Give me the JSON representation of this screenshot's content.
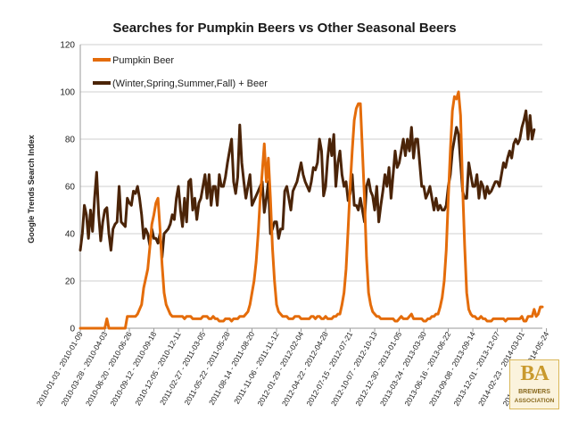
{
  "chart_data": {
    "type": "line",
    "title": "Searches for Pumpkin Beers vs Other Seasonal Beers",
    "ylabel": "Google Trends Search Index",
    "xlabel": "",
    "ylim": [
      0,
      120
    ],
    "yticks": [
      0,
      20,
      40,
      60,
      80,
      100,
      120
    ],
    "grid": "horizontal",
    "legend_position": "top-left",
    "x_tick_labels": [
      "2010-01-03 - 2010-01-09",
      "2010-03-28 - 2010-04-03",
      "2010-06-20 - 2010-06-26",
      "2010-09-12 - 2010-09-18",
      "2010-12-05 - 2010-12-11",
      "2011-02-27 - 2011-03-05",
      "2011-05-22 - 2011-05-28",
      "2011-08-14 - 2011-08-20",
      "2011-11-06 - 2011-11-12",
      "2012-01-29 - 2012-02-04",
      "2012-04-22 - 2012-04-28",
      "2012-07-15 - 2012-07-21",
      "2012-10-07 - 2012-10-13",
      "2012-12-30 - 2013-01-05",
      "2013-03-24 - 2013-03-30",
      "2013-06-16 - 2013-06-22",
      "2013-09-08 - 2013-09-14",
      "2013-12-01 - 2013-12-07",
      "2014-02-23 - 2014-03-01",
      "2014-05-18 - 2014-05-24"
    ],
    "series": [
      {
        "name": "Pumpkin Beer",
        "color": "#e46c0a",
        "values": [
          0,
          0,
          0,
          0,
          0,
          0,
          0,
          0,
          0,
          0,
          0,
          0,
          0,
          4,
          0,
          0,
          0,
          0,
          0,
          0,
          0,
          0,
          0,
          5,
          5,
          5,
          5,
          5,
          6,
          8,
          10,
          17,
          21,
          25,
          34,
          44,
          48,
          53,
          55,
          42,
          27,
          15,
          10,
          8,
          6,
          5,
          5,
          5,
          5,
          5,
          5,
          4,
          5,
          5,
          5,
          4,
          4,
          4,
          4,
          4,
          5,
          5,
          5,
          4,
          4,
          5,
          4,
          4,
          3,
          3,
          3,
          4,
          4,
          4,
          3,
          4,
          4,
          4,
          5,
          5,
          5,
          6,
          7,
          10,
          15,
          20,
          28,
          40,
          55,
          66,
          78,
          62,
          72,
          55,
          34,
          20,
          10,
          7,
          6,
          5,
          5,
          5,
          4,
          4,
          4,
          5,
          5,
          5,
          4,
          4,
          4,
          4,
          4,
          5,
          5,
          4,
          5,
          5,
          4,
          4,
          5,
          4,
          4,
          4,
          5,
          5,
          6,
          6,
          10,
          15,
          25,
          42,
          60,
          75,
          88,
          93,
          95,
          95,
          75,
          55,
          30,
          15,
          10,
          7,
          6,
          5,
          5,
          4,
          4,
          4,
          4,
          4,
          4,
          4,
          3,
          3,
          4,
          5,
          4,
          4,
          4,
          5,
          6,
          4,
          4,
          4,
          4,
          4,
          3,
          3,
          4,
          4,
          5,
          5,
          6,
          6,
          9,
          13,
          20,
          33,
          55,
          75,
          92,
          98,
          97,
          100,
          90,
          60,
          35,
          15,
          8,
          6,
          5,
          5,
          4,
          4,
          5,
          4,
          4,
          3,
          3,
          3,
          4,
          4,
          4,
          4,
          4,
          4,
          3,
          4,
          4,
          4,
          4,
          4,
          4,
          4,
          5,
          3,
          3,
          5,
          5,
          5,
          8,
          5,
          6,
          9,
          9
        ]
      },
      {
        "name": "(Winter,Spring,Summer,Fall) + Beer",
        "color": "#4b2408",
        "values": [
          33,
          40,
          52,
          48,
          38,
          50,
          41,
          55,
          66,
          48,
          37,
          45,
          50,
          51,
          40,
          33,
          42,
          44,
          45,
          60,
          45,
          44,
          43,
          55,
          53,
          52,
          58,
          57,
          60,
          55,
          48,
          38,
          42,
          40,
          35,
          42,
          38,
          38,
          36,
          40,
          30,
          40,
          41,
          42,
          44,
          48,
          46,
          55,
          60,
          50,
          43,
          55,
          45,
          62,
          63,
          50,
          55,
          46,
          53,
          55,
          60,
          65,
          55,
          65,
          52,
          60,
          60,
          52,
          65,
          60,
          60,
          64,
          70,
          75,
          80,
          62,
          57,
          64,
          86,
          70,
          62,
          55,
          60,
          65,
          52,
          54,
          56,
          58,
          60,
          62,
          49,
          55,
          62,
          40,
          42,
          45,
          45,
          38,
          42,
          42,
          58,
          60,
          55,
          50,
          58,
          60,
          62,
          66,
          70,
          65,
          62,
          60,
          58,
          62,
          68,
          67,
          70,
          80,
          75,
          56,
          60,
          72,
          80,
          73,
          82,
          60,
          70,
          75,
          65,
          60,
          62,
          54,
          57,
          65,
          52,
          52,
          50,
          55,
          50,
          45,
          60,
          63,
          58,
          56,
          50,
          60,
          45,
          52,
          58,
          65,
          60,
          68,
          55,
          65,
          75,
          68,
          70,
          75,
          80,
          73,
          80,
          75,
          85,
          72,
          80,
          80,
          70,
          60,
          60,
          55,
          57,
          60,
          55,
          50,
          55,
          50,
          52,
          50,
          50,
          52,
          60,
          65,
          75,
          80,
          85,
          82,
          70,
          58,
          55,
          55,
          70,
          65,
          60,
          60,
          65,
          55,
          62,
          60,
          55,
          60,
          57,
          58,
          60,
          62,
          62,
          60,
          65,
          70,
          68,
          72,
          75,
          72,
          78,
          80,
          78,
          80,
          85,
          88,
          92,
          80,
          90,
          80,
          84
        ]
      }
    ]
  },
  "brand": {
    "logo_mark": "BA",
    "logo_line1": "BREWERS",
    "logo_line2": "ASSOCIATION"
  }
}
